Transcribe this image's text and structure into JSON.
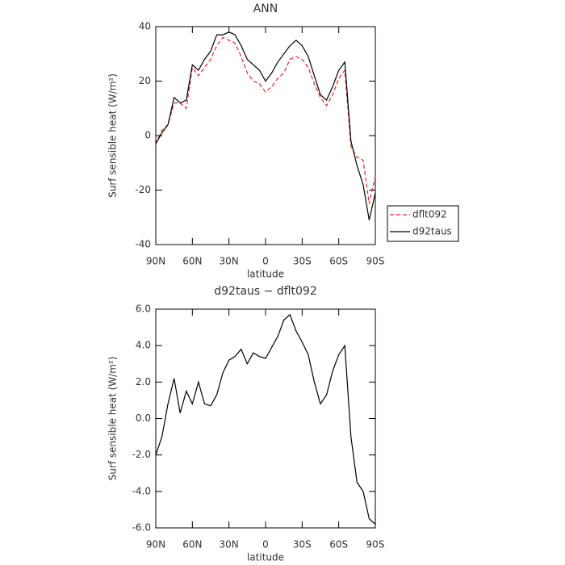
{
  "chart_data": [
    {
      "type": "line",
      "title": "ANN",
      "xlabel": "latitude",
      "ylabel": "Surf sensible heat (W/m²)",
      "x": [
        90,
        85,
        80,
        75,
        70,
        65,
        60,
        55,
        50,
        45,
        40,
        35,
        30,
        25,
        20,
        15,
        10,
        5,
        0,
        -5,
        -10,
        -15,
        -20,
        -25,
        -30,
        -35,
        -40,
        -45,
        -50,
        -55,
        -60,
        -65,
        -70,
        -75,
        -80,
        -85,
        -90
      ],
      "xlim": [
        90,
        -90
      ],
      "xticks": [
        {
          "value": 90,
          "label": "90N"
        },
        {
          "value": 60,
          "label": "60N"
        },
        {
          "value": 30,
          "label": "30N"
        },
        0,
        {
          "value": -30,
          "label": "30S"
        },
        {
          "value": -60,
          "label": "60S"
        },
        {
          "value": -90,
          "label": "90S"
        }
      ],
      "ylim": [
        -40,
        40
      ],
      "yticks": [
        -40,
        -20,
        0,
        20,
        40
      ],
      "legend": "right",
      "series": [
        {
          "name": "dflt092",
          "color": "#e8242a",
          "dash": true,
          "values": [
            -3,
            2,
            4,
            12,
            12,
            10,
            25,
            22,
            25,
            28,
            33,
            36,
            35,
            34,
            29,
            23,
            20,
            19,
            16,
            18,
            21,
            23,
            28,
            29,
            28,
            25,
            19,
            14,
            11,
            15,
            21,
            24,
            -4,
            -8,
            -9,
            -25,
            -15
          ]
        },
        {
          "name": "d92taus",
          "color": "#000000",
          "dash": false,
          "values": [
            -3,
            1,
            4,
            14,
            12,
            13,
            26,
            24,
            28,
            31,
            37,
            37,
            38,
            37,
            33,
            28,
            26,
            24,
            20,
            23,
            27,
            30,
            33,
            35,
            33,
            29,
            22,
            15,
            13,
            18,
            24,
            27,
            -2,
            -11,
            -18,
            -31,
            -21
          ]
        }
      ]
    },
    {
      "type": "line",
      "title": "d92taus − dflt092",
      "xlabel": "latitude",
      "ylabel": "Surf sensible heat (W/m²)",
      "x": [
        90,
        85,
        80,
        75,
        70,
        65,
        60,
        55,
        50,
        45,
        40,
        35,
        30,
        25,
        20,
        15,
        10,
        5,
        0,
        -5,
        -10,
        -15,
        -20,
        -25,
        -30,
        -35,
        -40,
        -45,
        -50,
        -55,
        -60,
        -65,
        -70,
        -75,
        -80,
        -85,
        -90
      ],
      "xlim": [
        90,
        -90
      ],
      "xticks": [
        {
          "value": 90,
          "label": "90N"
        },
        {
          "value": 60,
          "label": "60N"
        },
        {
          "value": 30,
          "label": "30N"
        },
        0,
        {
          "value": -30,
          "label": "30S"
        },
        {
          "value": -60,
          "label": "60S"
        },
        {
          "value": -90,
          "label": "90S"
        }
      ],
      "ylim": [
        -6,
        6
      ],
      "yticks": [
        {
          "value": -6,
          "label": "-6.0"
        },
        {
          "value": -4,
          "label": "-4.0"
        },
        {
          "value": -2,
          "label": "-2.0"
        },
        {
          "value": 0,
          "label": "0.0"
        },
        {
          "value": 2,
          "label": "2.0"
        },
        {
          "value": 4,
          "label": "4.0"
        },
        {
          "value": 6,
          "label": "6.0"
        }
      ],
      "color": "#000000",
      "values": [
        -2,
        -1,
        0.8,
        2.2,
        0.3,
        1.5,
        0.8,
        2.0,
        0.8,
        0.7,
        1.3,
        2.5,
        3.2,
        3.4,
        3.8,
        3.0,
        3.6,
        3.4,
        3.3,
        3.9,
        4.5,
        5.4,
        5.7,
        4.8,
        4.2,
        3.5,
        2.0,
        0.8,
        1.3,
        2.6,
        3.5,
        4.0,
        -1.0,
        -3.5,
        -4.0,
        -5.5,
        -5.8
      ]
    }
  ]
}
